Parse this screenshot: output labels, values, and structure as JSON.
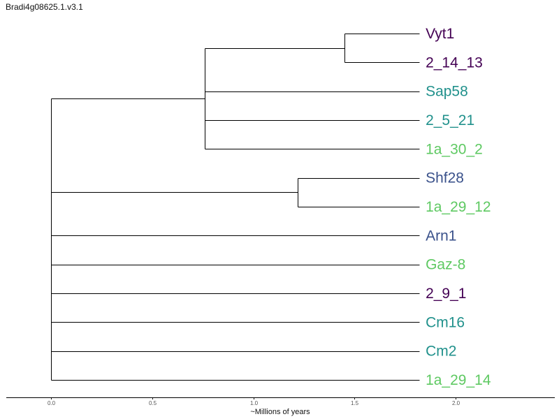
{
  "title": "Bradi4g08625.1.v3.1",
  "chart_data": {
    "type": "dendrogram",
    "title": "Bradi4g08625.1.v3.1",
    "xlabel": "~Millions of years",
    "x_ticks": [
      0.0,
      0.5,
      1.0,
      1.5,
      2.0
    ],
    "x_tick_labels": [
      "0.0",
      "0.5",
      "1.0",
      "1.5",
      "2.0"
    ],
    "xlim": [
      -0.22,
      2.5
    ],
    "leaf_end": 1.82,
    "colors": {
      "purple": "#440154",
      "teal": "#21918c",
      "blue": "#3b528b",
      "green": "#5ec962"
    },
    "leaves": [
      {
        "name": "Vyt1",
        "color": "#440154"
      },
      {
        "name": "2_14_13",
        "color": "#440154"
      },
      {
        "name": "Sap58",
        "color": "#21918c"
      },
      {
        "name": "2_5_21",
        "color": "#21918c"
      },
      {
        "name": "1a_30_2",
        "color": "#5ec962"
      },
      {
        "name": "Shf28",
        "color": "#3b528b"
      },
      {
        "name": "1a_29_12",
        "color": "#5ec962"
      },
      {
        "name": "Arn1",
        "color": "#3b528b"
      },
      {
        "name": "Gaz-8",
        "color": "#5ec962"
      },
      {
        "name": "2_9_1",
        "color": "#440154"
      },
      {
        "name": "Cm16",
        "color": "#21918c"
      },
      {
        "name": "Cm2",
        "color": "#21918c"
      },
      {
        "name": "1a_29_14",
        "color": "#5ec962"
      }
    ],
    "tree": {
      "x": 0.0,
      "children": [
        {
          "x": 0.76,
          "children": [
            {
              "x": 1.45,
              "children": [
                {
                  "leaf": 0
                },
                {
                  "leaf": 1
                }
              ]
            },
            {
              "leaf": 2
            },
            {
              "leaf": 3
            },
            {
              "leaf": 4
            }
          ]
        },
        {
          "x": 1.22,
          "children": [
            {
              "leaf": 5
            },
            {
              "leaf": 6
            }
          ]
        },
        {
          "leaf": 7
        },
        {
          "leaf": 8
        },
        {
          "leaf": 9
        },
        {
          "leaf": 10
        },
        {
          "leaf": 11
        },
        {
          "leaf": 12
        }
      ]
    }
  }
}
